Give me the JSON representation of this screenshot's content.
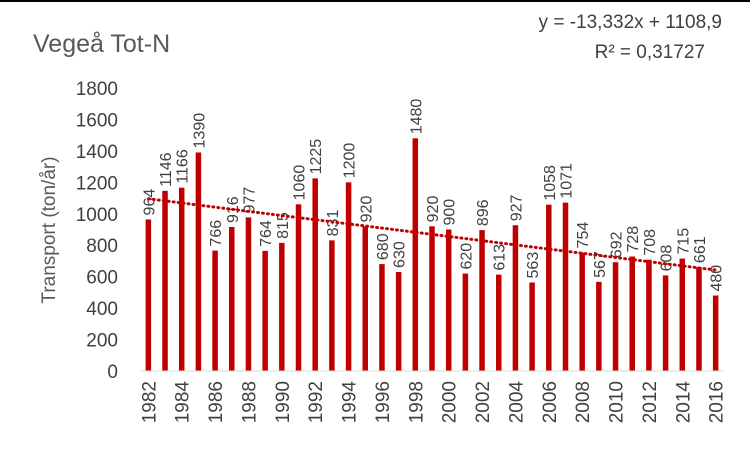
{
  "chart_data": {
    "type": "bar",
    "title": "Vegeå Tot-N",
    "ylabel": "Transport (ton/år)",
    "xlabel": "",
    "ylim": [
      0,
      1800
    ],
    "yticks": [
      0,
      200,
      400,
      600,
      800,
      1000,
      1200,
      1400,
      1600,
      1800
    ],
    "grid": false,
    "categories": [
      1982,
      1983,
      1984,
      1985,
      1986,
      1987,
      1988,
      1989,
      1990,
      1991,
      1992,
      1993,
      1994,
      1995,
      1996,
      1997,
      1998,
      1999,
      2000,
      2001,
      2002,
      2003,
      2004,
      2005,
      2006,
      2007,
      2008,
      2009,
      2010,
      2011,
      2012,
      2013,
      2014,
      2015,
      2016
    ],
    "xtick_labels": [
      "1982",
      "1984",
      "1986",
      "1988",
      "1990",
      "1992",
      "1994",
      "1996",
      "1998",
      "2000",
      "2002",
      "2004",
      "2006",
      "2008",
      "2010",
      "2012",
      "2014",
      "2016"
    ],
    "values": [
      964,
      1146,
      1166,
      1390,
      766,
      916,
      977,
      764,
      815,
      1060,
      1225,
      831,
      1200,
      920,
      680,
      630,
      1480,
      920,
      900,
      620,
      896,
      613,
      927,
      563,
      1058,
      1071,
      754,
      567,
      692,
      728,
      708,
      608,
      715,
      661,
      480
    ],
    "trendline": {
      "type": "linear",
      "slope": -13.332,
      "intercept": 1108.9,
      "r2": 0.31727,
      "equation_text": "y = -13,332x + 1108,9",
      "r2_text": "R² = 0,31727",
      "style": "dotted"
    },
    "colors": {
      "bar": "#c00000",
      "trend": "#c00000",
      "text": "#404040"
    }
  }
}
